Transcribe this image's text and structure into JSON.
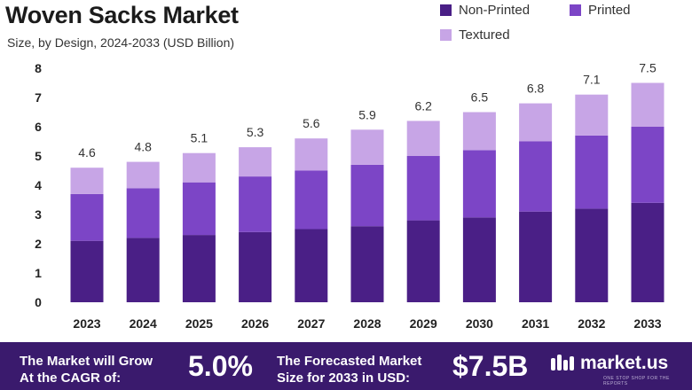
{
  "header": {
    "title": "Woven Sacks Market",
    "subtitle": "Size, by Design, 2024-2033 (USD Billion)"
  },
  "colors": {
    "non_printed": "#4a1f86",
    "printed": "#7c45c6",
    "textured": "#c7a5e6",
    "footer_bg": "#3a1a6d"
  },
  "chart_data": {
    "type": "bar",
    "stacked": true,
    "categories": [
      "2023",
      "2024",
      "2025",
      "2026",
      "2027",
      "2028",
      "2029",
      "2030",
      "2031",
      "2032",
      "2033"
    ],
    "series": [
      {
        "name": "Non-Printed",
        "values": [
          2.1,
          2.2,
          2.3,
          2.4,
          2.5,
          2.6,
          2.8,
          2.9,
          3.1,
          3.2,
          3.4
        ]
      },
      {
        "name": "Printed",
        "values": [
          1.6,
          1.7,
          1.8,
          1.9,
          2.0,
          2.1,
          2.2,
          2.3,
          2.4,
          2.5,
          2.6
        ]
      },
      {
        "name": "Textured",
        "values": [
          0.9,
          0.9,
          1.0,
          1.0,
          1.1,
          1.2,
          1.2,
          1.3,
          1.3,
          1.4,
          1.5
        ]
      }
    ],
    "totals": [
      "4.6",
      "4.8",
      "5.1",
      "5.3",
      "5.6",
      "5.9",
      "6.2",
      "6.5",
      "6.8",
      "7.1",
      "7.5"
    ],
    "y_ticks": [
      "0",
      "1",
      "2",
      "3",
      "4",
      "5",
      "6",
      "7",
      "8"
    ],
    "ylim": [
      0,
      8
    ],
    "grid": false,
    "legend_position": "top-right",
    "title": "Woven Sacks Market",
    "xlabel": "",
    "ylabel": ""
  },
  "footer": {
    "cagr_label_line1": "The Market will Grow",
    "cagr_label_line2": "At the CAGR of:",
    "cagr_value": "5.0%",
    "forecast_label_line1": "The Forecasted Market",
    "forecast_label_line2": "Size for 2033 in USD:",
    "forecast_value": "$7.5B",
    "brand": "market.us",
    "brand_tagline": "ONE STOP SHOP FOR THE REPORTS",
    "brand_icon": "market-us-logo-icon"
  }
}
